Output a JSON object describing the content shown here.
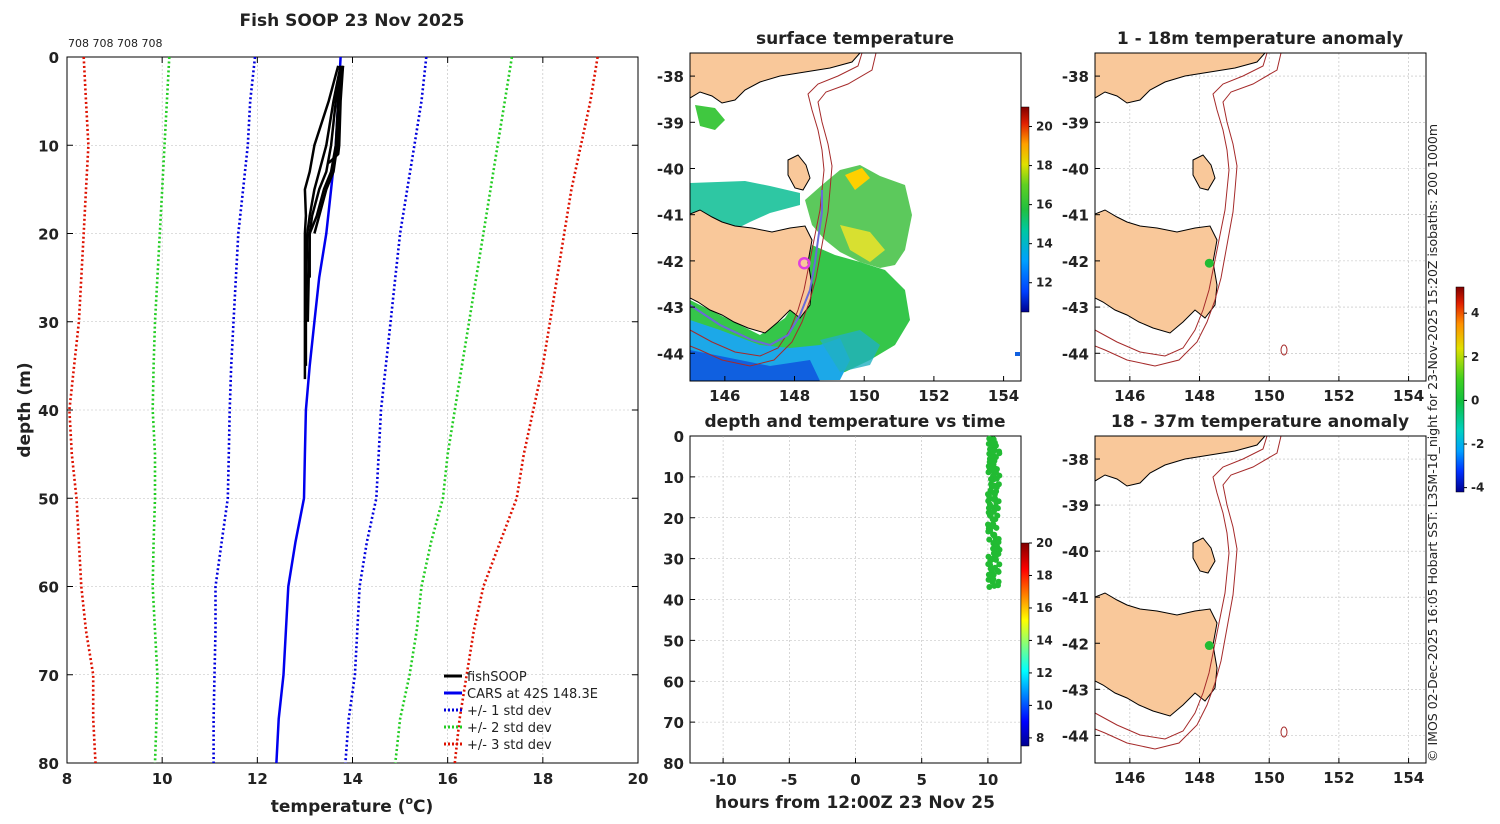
{
  "colors": {
    "black": "#000000",
    "cars": "#0000ee",
    "std1": "#0000dd",
    "std2": "#22cc22",
    "std3": "#dd1100",
    "land": "#f9c89a",
    "isobath": "#a52a2a",
    "track": "#6a6ad8",
    "marker": "#e040e0",
    "dot": "#22bb33"
  },
  "credit": "© IMOS 02-Dec-2025 16:05 Hobart SST: L3SM-1d_night for 23-Nov-2025 15:20Z isobaths: 200  1000m",
  "chart_data": [
    {
      "id": "profile",
      "type": "line",
      "title": "Fish SOOP 23 Nov 2025",
      "top_annotation": "708 708 708 708",
      "xlabel": "temperature (°C)",
      "xlabel_main": "temperature (",
      "xlabel_unit": "C)",
      "xlabel_sup": "o",
      "ylabel": "depth (m)",
      "xlim": [
        8,
        20
      ],
      "ylim": [
        0,
        80
      ],
      "xticks": [
        "8",
        "10",
        "12",
        "14",
        "16",
        "18",
        "20"
      ],
      "yticks": [
        "0",
        "10",
        "20",
        "30",
        "40",
        "50",
        "60",
        "70",
        "80"
      ],
      "legend": [
        "fishSOOP",
        "CARS at 42S 148.3E",
        "+/- 1 std dev",
        "+/- 2 std dev",
        "+/- 3 std dev"
      ],
      "legend_position": "bottom-right",
      "depths": [
        0,
        5,
        10,
        15,
        20,
        25,
        30,
        35,
        40,
        45,
        50,
        55,
        60,
        65,
        70,
        75,
        80
      ],
      "series": [
        {
          "name": "CARS",
          "style": "solid",
          "color": "#0000ee",
          "t": [
            13.75,
            13.7,
            13.65,
            13.55,
            13.45,
            13.3,
            13.2,
            13.1,
            13.02,
            13.0,
            12.98,
            12.8,
            12.65,
            12.6,
            12.55,
            12.45,
            12.4
          ]
        },
        {
          "name": "+1 std",
          "style": "dot",
          "color": "#0000dd",
          "t": [
            15.55,
            15.45,
            15.3,
            15.15,
            15.0,
            14.9,
            14.8,
            14.7,
            14.6,
            14.55,
            14.5,
            14.3,
            14.15,
            14.1,
            14.05,
            13.92,
            13.85
          ]
        },
        {
          "name": "-1 std",
          "style": "dot",
          "color": "#0000dd",
          "t": [
            11.95,
            11.85,
            11.8,
            11.7,
            11.6,
            11.55,
            11.5,
            11.45,
            11.42,
            11.4,
            11.38,
            11.25,
            11.12,
            11.12,
            11.1,
            11.08,
            11.08
          ]
        },
        {
          "name": "+2 std",
          "style": "dot",
          "color": "#22cc22",
          "t": [
            17.35,
            17.2,
            17.05,
            16.9,
            16.75,
            16.6,
            16.45,
            16.3,
            16.15,
            16.0,
            15.9,
            15.65,
            15.45,
            15.35,
            15.2,
            15.0,
            14.9
          ]
        },
        {
          "name": "-2 std",
          "style": "dot",
          "color": "#22cc22",
          "t": [
            10.15,
            10.1,
            10.05,
            10.0,
            9.95,
            9.9,
            9.85,
            9.82,
            9.8,
            9.85,
            9.85,
            9.82,
            9.8,
            9.85,
            9.9,
            9.88,
            9.85
          ]
        },
        {
          "name": "+3 std",
          "style": "dot",
          "color": "#dd1100",
          "t": [
            19.15,
            19.0,
            18.8,
            18.6,
            18.45,
            18.3,
            18.15,
            18.0,
            17.8,
            17.6,
            17.45,
            17.1,
            16.75,
            16.55,
            16.4,
            16.25,
            16.15
          ]
        },
        {
          "name": "-3 std",
          "style": "dot",
          "color": "#dd1100",
          "t": [
            8.35,
            8.4,
            8.45,
            8.4,
            8.35,
            8.3,
            8.25,
            8.15,
            8.05,
            8.1,
            8.2,
            8.25,
            8.3,
            8.4,
            8.55,
            8.55,
            8.6
          ]
        }
      ],
      "casts": [
        {
          "d": [
            1,
            5,
            10,
            13,
            15,
            18,
            20,
            25,
            30,
            35,
            36.5
          ],
          "t": [
            13.7,
            13.5,
            13.2,
            13.1,
            13.0,
            13.02,
            13.0,
            13.0,
            13.0,
            13.0,
            13.0
          ]
        },
        {
          "d": [
            1,
            5,
            10,
            13,
            15,
            18,
            20,
            25,
            30,
            35
          ],
          "t": [
            13.75,
            13.6,
            13.45,
            13.3,
            13.2,
            13.1,
            13.05,
            13.03,
            13.02,
            13.02
          ]
        },
        {
          "d": [
            1,
            5,
            10,
            13,
            15,
            18,
            20,
            25,
            30
          ],
          "t": [
            13.75,
            13.65,
            13.55,
            13.45,
            13.3,
            13.15,
            13.1,
            13.08,
            13.06
          ]
        },
        {
          "d": [
            1,
            5,
            10,
            13,
            15,
            18,
            20,
            25
          ],
          "t": [
            13.8,
            13.7,
            13.65,
            13.55,
            13.4,
            13.25,
            13.1,
            13.1
          ]
        },
        {
          "d": [
            1,
            5,
            10,
            13,
            15,
            18,
            20
          ],
          "t": [
            13.75,
            13.7,
            13.68,
            13.6,
            13.45,
            13.3,
            13.2
          ]
        },
        {
          "d": [
            1,
            5,
            10,
            11,
            12
          ],
          "t": [
            13.8,
            13.75,
            13.72,
            13.7,
            13.5
          ]
        }
      ]
    },
    {
      "id": "sst",
      "type": "heatmap",
      "title": "surface temperature",
      "xlim": [
        145,
        154.5
      ],
      "ylim": [
        -44.6,
        -37.5
      ],
      "xticks": [
        "146",
        "148",
        "150",
        "152",
        "154"
      ],
      "yticks": [
        "-38",
        "-39",
        "-40",
        "-41",
        "-42",
        "-43",
        "-44"
      ],
      "colorbar_ticks": [
        "12",
        "14",
        "16",
        "18",
        "20"
      ],
      "colorbar_range": [
        10.5,
        21
      ],
      "marker": {
        "lon": 148.28,
        "lat": -42.05
      }
    },
    {
      "id": "timeseries",
      "type": "scatter",
      "title": "depth and temperature vs time",
      "xlabel": "hours from 12:00Z 23 Nov 25",
      "xlim": [
        -12.5,
        12.5
      ],
      "ylim": [
        0,
        80
      ],
      "xticks": [
        "-10",
        "-5",
        "0",
        "5",
        "10"
      ],
      "yticks": [
        "0",
        "10",
        "20",
        "30",
        "40",
        "50",
        "60",
        "70",
        "80"
      ],
      "colorbar_ticks": [
        "8",
        "10",
        "12",
        "14",
        "16",
        "18",
        "20"
      ],
      "colorbar_range": [
        7.5,
        20
      ],
      "points": {
        "hour_min": 10.0,
        "hour_max": 10.9,
        "depth_min": 0.5,
        "depth_max": 36.5,
        "temperature": 13.0
      }
    },
    {
      "id": "anom1",
      "type": "heatmap",
      "title": "1 - 18m temperature anomaly",
      "xlim": [
        145,
        154.5
      ],
      "ylim": [
        -44.6,
        -37.5
      ],
      "xticks": [
        "146",
        "148",
        "150",
        "152",
        "154"
      ],
      "yticks": [
        "-38",
        "-39",
        "-40",
        "-41",
        "-42",
        "-43",
        "-44"
      ],
      "marker": {
        "lon": 148.28,
        "lat": -42.05
      }
    },
    {
      "id": "anom2",
      "type": "heatmap",
      "title": "18 - 37m temperature anomaly",
      "xlim": [
        145,
        154.5
      ],
      "ylim": [
        -44.6,
        -37.5
      ],
      "xticks": [
        "146",
        "148",
        "150",
        "152",
        "154"
      ],
      "yticks": [
        "-38",
        "-39",
        "-40",
        "-41",
        "-42",
        "-43",
        "-44"
      ],
      "marker": {
        "lon": 148.28,
        "lat": -42.05
      }
    },
    {
      "id": "anomcb",
      "type": "colorbar",
      "colorbar_ticks": [
        "-4",
        "-2",
        "0",
        "2",
        "4"
      ],
      "colorbar_range": [
        -4.2,
        5.2
      ]
    }
  ]
}
